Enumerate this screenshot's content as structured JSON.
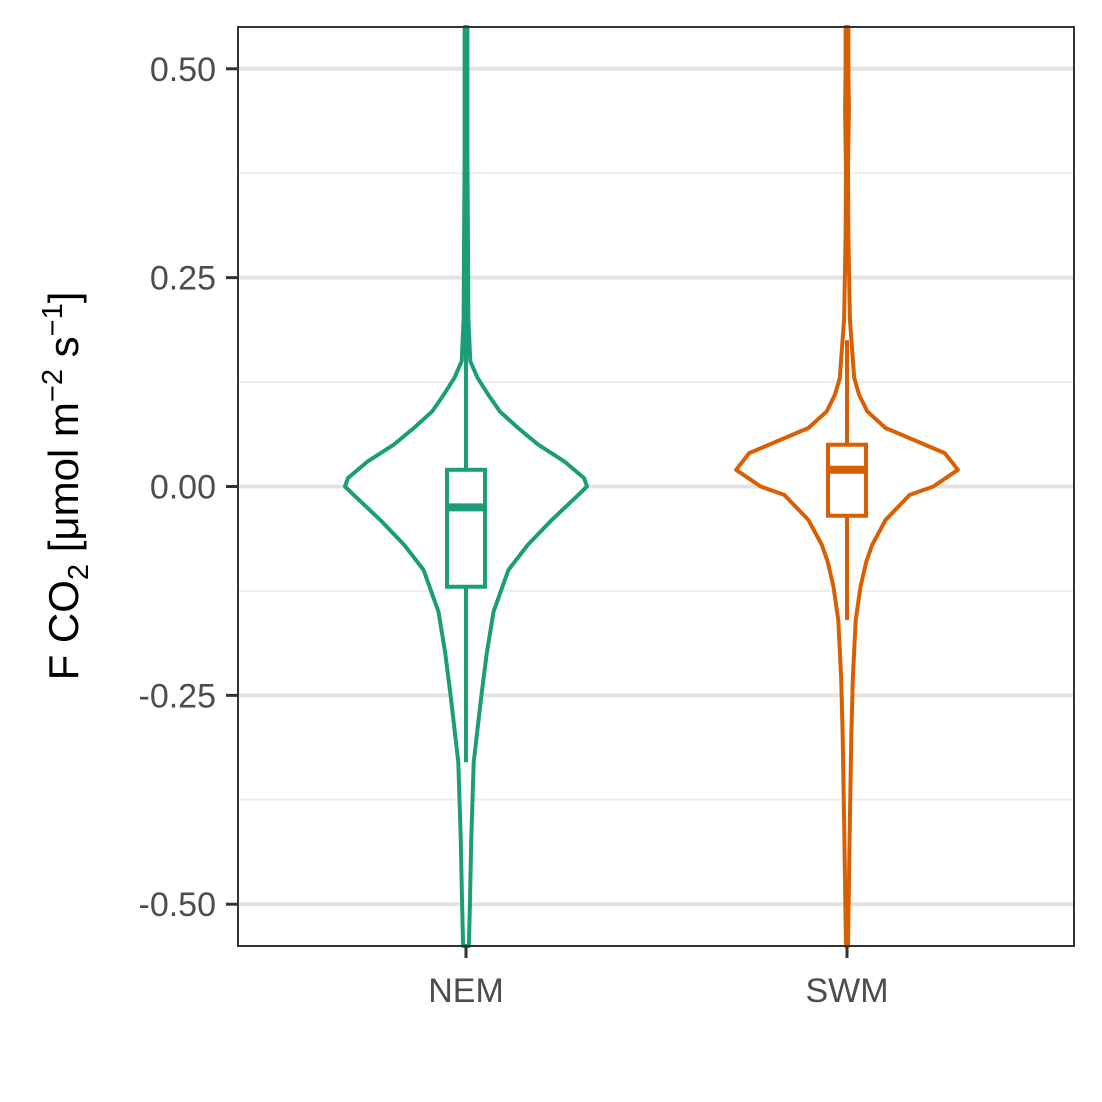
{
  "chart_data": {
    "type": "violin",
    "ylabel": {
      "prefix": "F CO",
      "sub": "2",
      "middle": " [μmol m",
      "sup1": "−2",
      "s": " s",
      "sup2": "−1",
      "suffix": "]"
    },
    "ylim": [
      -0.55,
      0.55
    ],
    "y_ticks": [
      -0.5,
      -0.25,
      0.0,
      0.25,
      0.5
    ],
    "y_tick_labels": [
      "-0.50",
      "-0.25",
      "0.00",
      "0.25",
      "0.50"
    ],
    "grid": true,
    "legend": "none",
    "categories": [
      "NEM",
      "SWM"
    ],
    "series": [
      {
        "category": "NEM",
        "color": "#1b9e77",
        "box": {
          "q1": -0.12,
          "median": -0.025,
          "q3": 0.02,
          "whisker_low": -0.33,
          "whisker_high": 0.55
        },
        "violin": [
          [
            -0.55,
            0.006
          ],
          [
            -0.5,
            0.008
          ],
          [
            -0.42,
            0.011
          ],
          [
            -0.33,
            0.016
          ],
          [
            -0.25,
            0.032
          ],
          [
            -0.2,
            0.043
          ],
          [
            -0.15,
            0.057
          ],
          [
            -0.1,
            0.088
          ],
          [
            -0.07,
            0.128
          ],
          [
            -0.04,
            0.178
          ],
          [
            -0.01,
            0.233
          ],
          [
            0.0,
            0.251
          ],
          [
            0.01,
            0.245
          ],
          [
            0.03,
            0.204
          ],
          [
            0.05,
            0.15
          ],
          [
            0.07,
            0.108
          ],
          [
            0.09,
            0.07
          ],
          [
            0.11,
            0.046
          ],
          [
            0.13,
            0.024
          ],
          [
            0.15,
            0.009
          ],
          [
            0.2,
            0.005
          ],
          [
            0.3,
            0.004
          ],
          [
            0.4,
            0.003
          ],
          [
            0.55,
            0.003
          ]
        ]
      },
      {
        "category": "SWM",
        "color": "#d95f02",
        "box": {
          "q1": -0.035,
          "median": 0.02,
          "q3": 0.05,
          "whisker_low": -0.16,
          "whisker_high": 0.175
        },
        "violin": [
          [
            -0.55,
            0.002
          ],
          [
            -0.4,
            0.006
          ],
          [
            -0.3,
            0.009
          ],
          [
            -0.23,
            0.012
          ],
          [
            -0.16,
            0.018
          ],
          [
            -0.12,
            0.028
          ],
          [
            -0.09,
            0.04
          ],
          [
            -0.07,
            0.052
          ],
          [
            -0.04,
            0.08
          ],
          [
            -0.01,
            0.13
          ],
          [
            0.0,
            0.179
          ],
          [
            0.02,
            0.23
          ],
          [
            0.04,
            0.203
          ],
          [
            0.07,
            0.08
          ],
          [
            0.09,
            0.042
          ],
          [
            0.11,
            0.025
          ],
          [
            0.13,
            0.015
          ],
          [
            0.2,
            0.006
          ],
          [
            0.3,
            0.003
          ],
          [
            0.38,
            0.002
          ],
          [
            0.45,
            0.004
          ],
          [
            0.5,
            0.003
          ],
          [
            0.55,
            0.003
          ]
        ]
      }
    ]
  }
}
